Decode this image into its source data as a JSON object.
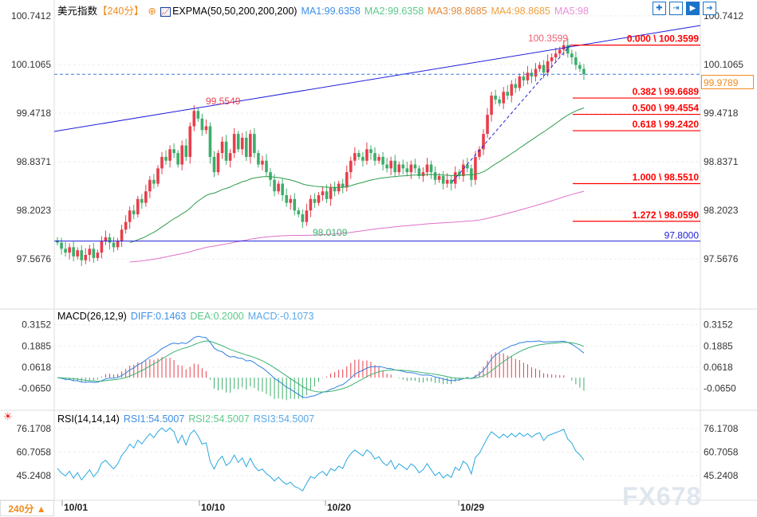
{
  "header": {
    "title": "美元指数",
    "period": "【240分】",
    "add_icon": "circle-plus-icon",
    "indicator_icon": "expma-icon",
    "expma": "EXPMA(50,50,200,200,200)",
    "ma1": "MA1:99.6358",
    "ma2": "MA2:99.6358",
    "ma3": "MA3:98.8685",
    "ma4": "MA4:98.8685",
    "ma5": "MA5:98"
  },
  "toolbar_icons": [
    "crosshair-icon",
    "fit-range-icon",
    "play-forward-icon",
    "jump-end-icon"
  ],
  "macd": {
    "title": "MACD(26,12,9)",
    "diff": "DIFF:0.1463",
    "dea": "DEA:0.2000",
    "macd": "MACD:-0.1073",
    "ticks": [
      "0.3152",
      "0.1885",
      "0.0618",
      "-0.0650"
    ]
  },
  "rsi": {
    "title": "RSI(14,14,14)",
    "rsi1": "RSI1:54.5007",
    "rsi2": "RSI2:54.5007",
    "rsi3": "RSI3:54.5007",
    "ticks": [
      "76.1708",
      "60.7058",
      "45.2408"
    ]
  },
  "footer": {
    "period_button": "240分 ▲",
    "watermark": "FX678"
  },
  "colors": {
    "up": "#e83e4b",
    "down": "#3cae6b",
    "ma1": "#2e9b4a",
    "ma3": "#e070c8",
    "trend": "#1f1fd8",
    "fib": "#ff0000",
    "current": "#f08c1e",
    "diff": "#2f7fe0",
    "dea": "#3cb371"
  },
  "chart_data": {
    "type": "candlestick",
    "price_ticks": [
      "100.7412",
      "100.1065",
      "99.4718",
      "98.8371",
      "98.2023",
      "97.5676"
    ],
    "ylim": [
      97.5676,
      100.7412
    ],
    "current_price": "99.9789",
    "x_ticks": [
      "10/01",
      "10/10",
      "10/20",
      "10/29"
    ],
    "annotations": {
      "high": "100.3599",
      "swing_high": "99.5549",
      "low": "98.0109",
      "support": "97.8000"
    },
    "fibonacci": [
      {
        "ratio": "0.000",
        "price": 100.3599,
        "label": "0.000 \\ 100.3599"
      },
      {
        "ratio": "0.382",
        "price": 99.6689,
        "label": "0.382 \\ 99.6689"
      },
      {
        "ratio": "0.500",
        "price": 99.4554,
        "label": "0.500 \\ 99.4554"
      },
      {
        "ratio": "0.618",
        "price": 99.242,
        "label": "0.618 \\ 99.2420"
      },
      {
        "ratio": "1.000",
        "price": 98.551,
        "label": "1.000 \\ 98.5510"
      },
      {
        "ratio": "1.272",
        "price": 98.059,
        "label": "1.272 \\ 98.0590"
      }
    ],
    "closes": [
      97.78,
      97.7,
      97.65,
      97.72,
      97.6,
      97.68,
      97.55,
      97.62,
      97.7,
      97.58,
      97.65,
      97.8,
      97.85,
      97.78,
      97.72,
      97.8,
      97.95,
      98.05,
      98.2,
      98.15,
      98.35,
      98.3,
      98.45,
      98.6,
      98.55,
      98.75,
      98.9,
      98.85,
      99.0,
      98.95,
      98.8,
      99.05,
      98.9,
      99.3,
      99.5,
      99.4,
      99.25,
      99.3,
      98.9,
      98.7,
      98.95,
      99.1,
      98.85,
      98.95,
      99.2,
      99.0,
      99.15,
      98.9,
      99.2,
      98.95,
      98.8,
      98.85,
      98.7,
      98.6,
      98.45,
      98.55,
      98.4,
      98.3,
      98.35,
      98.2,
      98.15,
      98.05,
      98.2,
      98.35,
      98.3,
      98.4,
      98.45,
      98.35,
      98.5,
      98.45,
      98.55,
      98.5,
      98.7,
      98.85,
      98.95,
      98.9,
      98.85,
      99.0,
      98.95,
      98.85,
      98.9,
      98.8,
      98.75,
      98.85,
      98.7,
      98.8,
      98.75,
      98.7,
      98.8,
      98.75,
      98.65,
      98.7,
      98.8,
      98.7,
      98.6,
      98.65,
      98.55,
      98.6,
      98.55,
      98.7,
      98.65,
      98.8,
      98.75,
      98.6,
      98.9,
      99.0,
      99.2,
      99.45,
      99.7,
      99.65,
      99.6,
      99.75,
      99.7,
      99.85,
      99.8,
      99.95,
      99.9,
      100.0,
      99.95,
      100.05,
      100.1,
      100.0,
      100.15,
      100.2,
      100.25,
      100.3,
      100.36,
      100.25,
      100.2,
      100.1,
      100.05,
      99.98
    ]
  }
}
